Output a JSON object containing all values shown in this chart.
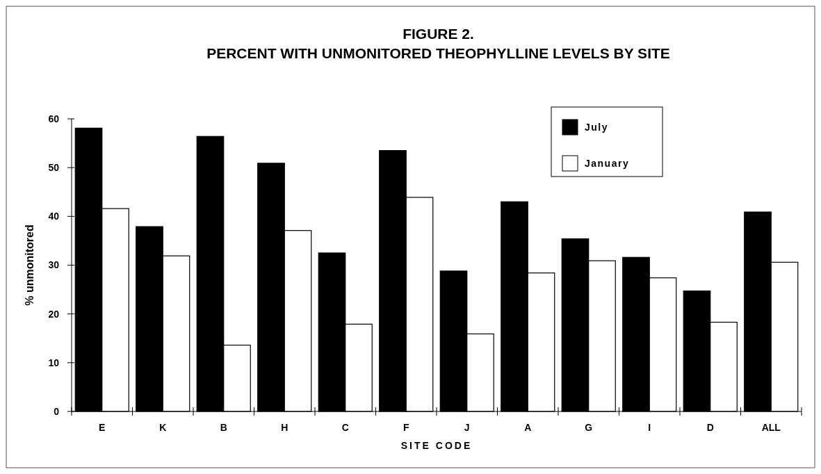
{
  "chart_data": {
    "type": "bar",
    "title": "FIGURE 2.\nPERCENT  WITH UNMONITORED THEOPHYLLINE LEVELS BY SITE",
    "xlabel": "SITE CODE",
    "ylabel": "% unmonitored",
    "categories": [
      "E",
      "K",
      "B",
      "H",
      "C",
      "F",
      "J",
      "A",
      "G",
      "I",
      "D",
      "ALL"
    ],
    "series": [
      {
        "name": "July",
        "color": "#000000",
        "values": [
          58.1,
          37.9,
          56.4,
          50.9,
          32.5,
          53.5,
          28.8,
          43.0,
          35.4,
          31.6,
          24.7,
          40.9
        ]
      },
      {
        "name": "January",
        "color": "#ffffff",
        "values": [
          41.6,
          31.9,
          13.6,
          37.1,
          17.9,
          43.9,
          15.9,
          28.4,
          30.9,
          27.4,
          18.3,
          30.6
        ]
      }
    ],
    "ylim": [
      0,
      60
    ],
    "yticks": [
      0,
      10,
      20,
      30,
      40,
      50,
      60
    ],
    "grid": false,
    "legend": "top right"
  }
}
